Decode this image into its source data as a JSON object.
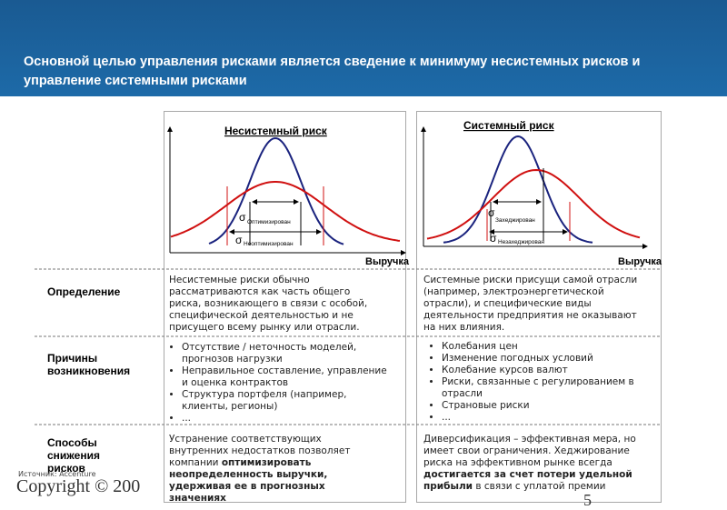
{
  "header": {
    "title": "Основной целью управления рисками является сведение к минимуму несистемных рисков и управление системными рисками"
  },
  "diagrams": [
    {
      "title": "Несистемный риск",
      "sigma_1": "σ",
      "label_1": "Оптимизирован",
      "sigma_2": "σ",
      "label_2": "Неоптимизирован",
      "axis": "Выручка"
    },
    {
      "title": "Системный риск",
      "sigma_1": "σ",
      "label_1": "Захеджирован",
      "sigma_2": "σ",
      "label_2": "Незахеджирован",
      "axis": "Выручка"
    }
  ],
  "table": {
    "row_labels": [
      "Определение",
      "Причины возникновения",
      "Способы снижения рисков"
    ],
    "definition": [
      "Несистемные риски обычно рассматриваются как часть общего риска, возникающего в связи с особой, специфической деятельностью и не присущего всему рынку или отрасли.",
      "Системные риски присущи самой отрасли (например, электроэнергетической отрасли), и специфические виды деятельности предприятия не оказывают на них влияния."
    ],
    "causes": [
      [
        "Отсутствие / неточность моделей, прогнозов нагрузки",
        "Неправильное составление, управление и оценка контрактов",
        "Структура портфеля (например, клиенты, регионы)",
        "..."
      ],
      [
        "Колебания цен",
        "Изменение погодных условий",
        "Колебание курсов валют",
        "Риски, связанные с регулированием в отрасли",
        "Страновые риски",
        "..."
      ]
    ],
    "mitigation": [
      {
        "text": "Устранение соответствующих внутренних недостатков позволяет компании ",
        "emphasis": "оптимизировать неопределенность выручки, удерживая ее в прогнозных значениях"
      },
      {
        "text": "Диверсификация – эффективная мера, но имеет свои ограничения. Хеджирование риска на эффективном рынке всегда ",
        "emphasis": "достигается за счет потери удельной прибыли",
        "tail": " в связи с уплатой премии"
      }
    ]
  },
  "footer": {
    "source": "Источник: Accenture",
    "copyright": "Copyright © 200",
    "page": "5"
  }
}
